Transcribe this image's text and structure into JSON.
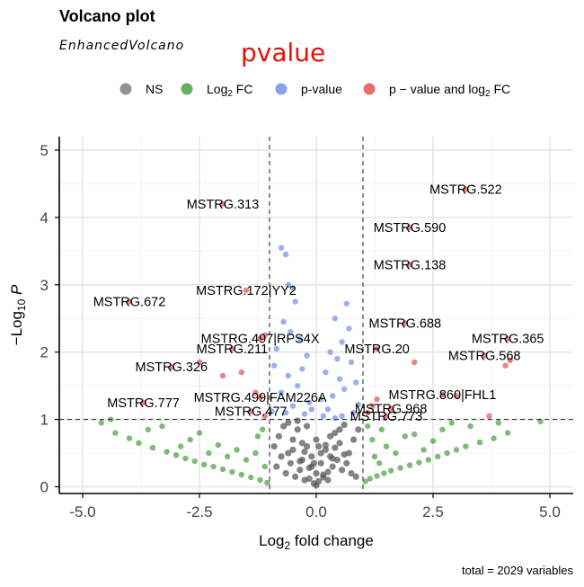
{
  "header": {
    "title": "Volcano plot",
    "subtitle": "EnhancedVolcano",
    "overlay": "pvalue",
    "caption": "total = 2029 variables"
  },
  "legend": [
    {
      "label": "NS",
      "color": "#7f7f7f"
    },
    {
      "label": "Log2 FC",
      "color": "#4f9f45"
    },
    {
      "label": "p-value",
      "color": "#7393e6"
    },
    {
      "label": "p − value and log2 FC",
      "color": "#e55555"
    }
  ],
  "chart_data": {
    "type": "scatter",
    "title": "Volcano plot",
    "subtitle": "EnhancedVolcano",
    "xlabel": "Log2 fold change",
    "ylabel": "−Log10 P",
    "xlim": [
      -5.5,
      5.5
    ],
    "ylim": [
      -0.1,
      5.2
    ],
    "x_ticks": [
      -5.0,
      -2.5,
      0.0,
      2.5,
      5.0
    ],
    "x_tick_labels": [
      "-5.0",
      "-2.5",
      "0.0",
      "2.5",
      "5.0"
    ],
    "y_ticks": [
      0,
      1,
      2,
      3,
      4,
      5
    ],
    "y_tick_labels": [
      "0",
      "1",
      "2",
      "3",
      "4",
      "5"
    ],
    "fc_cutoff": 1,
    "p_cutoff": 1,
    "grid": true,
    "legend_position": "top",
    "labeled_genes": [
      {
        "label": "MSTRG.522",
        "x": 3.2,
        "y": 4.42,
        "group": "p - value and log2 FC"
      },
      {
        "label": "MSTRG.313",
        "x": -2.0,
        "y": 4.2,
        "group": "p - value and log2 FC"
      },
      {
        "label": "MSTRG.590",
        "x": 2.0,
        "y": 3.85,
        "group": "p - value and log2 FC"
      },
      {
        "label": "MSTRG.138",
        "x": 2.0,
        "y": 3.3,
        "group": "p - value and log2 FC"
      },
      {
        "label": "MSTRG.672",
        "x": -4.0,
        "y": 2.75,
        "group": "p - value and log2 FC"
      },
      {
        "label": "MSTRG.172|YY2",
        "x": -1.5,
        "y": 2.92,
        "group": "p - value and log2 FC"
      },
      {
        "label": "MSTRG.688",
        "x": 1.9,
        "y": 2.43,
        "group": "p - value and log2 FC"
      },
      {
        "label": "MSTRG.497|RPS4X",
        "x": -1.2,
        "y": 2.2,
        "group": "p - value and log2 FC"
      },
      {
        "label": "MSTRG.365",
        "x": 4.1,
        "y": 2.2,
        "group": "p - value and log2 FC"
      },
      {
        "label": "MSTRG.211",
        "x": -1.8,
        "y": 2.05,
        "group": "p - value and log2 FC"
      },
      {
        "label": "MSTRG.20",
        "x": 1.3,
        "y": 2.05,
        "group": "p - value and log2 FC"
      },
      {
        "label": "MSTRG.568",
        "x": 3.6,
        "y": 1.95,
        "group": "p - value and log2 FC"
      },
      {
        "label": "MSTRG.326",
        "x": -3.1,
        "y": 1.78,
        "group": "p - value and log2 FC"
      },
      {
        "label": "MSTRG.860|FHL1",
        "x": 2.7,
        "y": 1.37,
        "group": "p - value and log2 FC"
      },
      {
        "label": "MSTRG.499|FAM226A",
        "x": -1.2,
        "y": 1.33,
        "group": "p - value and log2 FC"
      },
      {
        "label": "MSTRG.968",
        "x": 1.6,
        "y": 1.16,
        "group": "p - value and log2 FC"
      },
      {
        "label": "MSTRG.777",
        "x": -3.7,
        "y": 1.25,
        "group": "p - value and log2 FC"
      },
      {
        "label": "MSTRG.477",
        "x": -1.4,
        "y": 1.12,
        "group": "p - value and log2 FC"
      },
      {
        "label": "MSTRG.773",
        "x": 1.5,
        "y": 1.05,
        "group": "p - value and log2 FC"
      }
    ],
    "series": [
      {
        "name": "p − value and log2 FC",
        "color": "#e55555",
        "x": [
          3.2,
          -2.0,
          2.0,
          2.0,
          -4.0,
          -1.5,
          1.9,
          -1.2,
          4.1,
          -1.8,
          1.3,
          3.6,
          -3.1,
          2.7,
          -1.2,
          1.6,
          -3.7,
          -1.4,
          1.5,
          4.15,
          2.1,
          -2.0,
          -1.6,
          -2.5,
          -1.1,
          1.3,
          1.2,
          -1.3,
          3.0,
          3.7,
          4.05,
          1.1,
          -1.1
        ],
        "y": [
          4.42,
          4.2,
          3.85,
          3.3,
          2.75,
          2.92,
          2.43,
          2.2,
          2.2,
          2.05,
          2.05,
          1.95,
          1.78,
          1.37,
          1.33,
          1.16,
          1.25,
          1.12,
          1.05,
          1.88,
          1.85,
          1.65,
          1.7,
          1.85,
          2.25,
          1.3,
          1.2,
          1.4,
          1.35,
          1.05,
          1.8,
          1.1,
          1.05
        ]
      },
      {
        "name": "p-value",
        "color": "#7393e6",
        "x": [
          -0.75,
          -0.65,
          -0.6,
          -0.5,
          -0.45,
          -0.7,
          0.65,
          0.4,
          -0.55,
          -0.35,
          0.55,
          0.7,
          -0.85,
          0.3,
          -0.2,
          0.45,
          -0.9,
          0.75,
          -0.3,
          0.2,
          -0.6,
          0.5,
          0.85,
          -0.4,
          0.6,
          -0.75,
          0.35,
          0.1,
          -0.15,
          0.9,
          -0.5,
          0.25,
          -0.95,
          0.8,
          -0.25,
          0.15,
          0.55,
          -0.65,
          0.4,
          -0.1
        ],
        "y": [
          3.55,
          3.45,
          3.0,
          2.95,
          2.75,
          2.45,
          2.72,
          2.5,
          2.3,
          2.2,
          2.15,
          2.35,
          2.05,
          2.0,
          1.95,
          1.9,
          1.8,
          1.85,
          1.75,
          1.7,
          1.65,
          1.6,
          1.55,
          1.5,
          1.45,
          1.4,
          1.35,
          1.3,
          1.25,
          1.22,
          1.2,
          1.15,
          1.12,
          1.1,
          1.08,
          1.05,
          1.05,
          1.1,
          1.02,
          1.15
        ]
      },
      {
        "name": "Log2 FC",
        "color": "#4f9f45",
        "x": [
          -4.6,
          -4.3,
          -4.0,
          -3.8,
          -3.5,
          -3.2,
          -3.0,
          -2.8,
          -2.6,
          -2.4,
          -2.2,
          -2.0,
          -1.8,
          -1.6,
          -1.4,
          -1.2,
          -1.05,
          -4.4,
          -3.6,
          -2.9,
          -2.3,
          -1.9,
          -1.5,
          -1.1,
          -3.3,
          -2.7,
          -2.1,
          -1.7,
          -1.3,
          -2.5,
          -1.25,
          -1.15,
          1.05,
          1.15,
          1.3,
          1.45,
          1.6,
          1.8,
          2.0,
          2.2,
          2.4,
          2.6,
          2.8,
          3.0,
          3.2,
          3.5,
          3.8,
          4.1,
          4.8,
          1.2,
          1.5,
          1.9,
          2.3,
          2.7,
          3.3,
          3.9,
          1.1,
          1.4,
          1.7,
          2.1,
          2.5,
          2.9,
          1.25,
          1.35
        ],
        "y": [
          0.95,
          0.8,
          0.72,
          0.65,
          0.58,
          0.52,
          0.47,
          0.42,
          0.38,
          0.33,
          0.3,
          0.26,
          0.22,
          0.18,
          0.14,
          0.1,
          0.06,
          1.0,
          0.85,
          0.6,
          0.5,
          0.45,
          0.4,
          0.3,
          0.9,
          0.7,
          0.62,
          0.55,
          0.5,
          0.8,
          0.75,
          0.85,
          0.08,
          0.12,
          0.16,
          0.2,
          0.24,
          0.28,
          0.32,
          0.36,
          0.4,
          0.45,
          0.5,
          0.55,
          0.6,
          0.66,
          0.72,
          0.8,
          0.97,
          0.7,
          0.6,
          0.75,
          0.55,
          0.85,
          0.9,
          0.95,
          0.9,
          0.85,
          0.5,
          0.78,
          0.68,
          0.95,
          0.45,
          0.35
        ]
      },
      {
        "name": "NS",
        "color": "#555555",
        "x": [
          -0.9,
          -0.8,
          -0.7,
          -0.6,
          -0.5,
          -0.4,
          -0.3,
          -0.2,
          -0.1,
          0.0,
          0.1,
          0.2,
          0.3,
          0.4,
          0.5,
          0.6,
          0.7,
          0.8,
          0.9,
          -0.85,
          -0.75,
          -0.65,
          -0.55,
          -0.45,
          -0.35,
          -0.25,
          -0.15,
          -0.05,
          0.05,
          0.15,
          0.25,
          0.35,
          0.45,
          0.55,
          0.65,
          0.75,
          0.85,
          -0.5,
          -0.3,
          -0.1,
          0.1,
          0.3,
          0.5,
          -0.6,
          -0.4,
          -0.2,
          0.0,
          0.2,
          0.4,
          0.6,
          -0.35,
          -0.15,
          0.15,
          0.35,
          -0.25,
          0.0,
          0.25,
          -0.05,
          0.05
        ],
        "y": [
          0.6,
          0.75,
          0.9,
          0.5,
          0.7,
          0.85,
          0.4,
          0.6,
          0.3,
          0.2,
          0.35,
          0.55,
          0.45,
          0.8,
          0.65,
          0.92,
          0.5,
          0.7,
          0.85,
          0.3,
          0.45,
          0.2,
          0.35,
          0.15,
          0.25,
          0.1,
          0.12,
          0.05,
          0.08,
          0.14,
          0.22,
          0.3,
          0.4,
          0.25,
          0.35,
          0.2,
          0.15,
          0.55,
          0.65,
          0.45,
          0.5,
          0.75,
          0.85,
          0.95,
          0.98,
          0.9,
          0.7,
          0.62,
          0.58,
          0.48,
          0.38,
          0.28,
          0.18,
          0.42,
          0.52,
          0.02,
          0.1,
          0.35,
          0.6
        ]
      }
    ]
  }
}
